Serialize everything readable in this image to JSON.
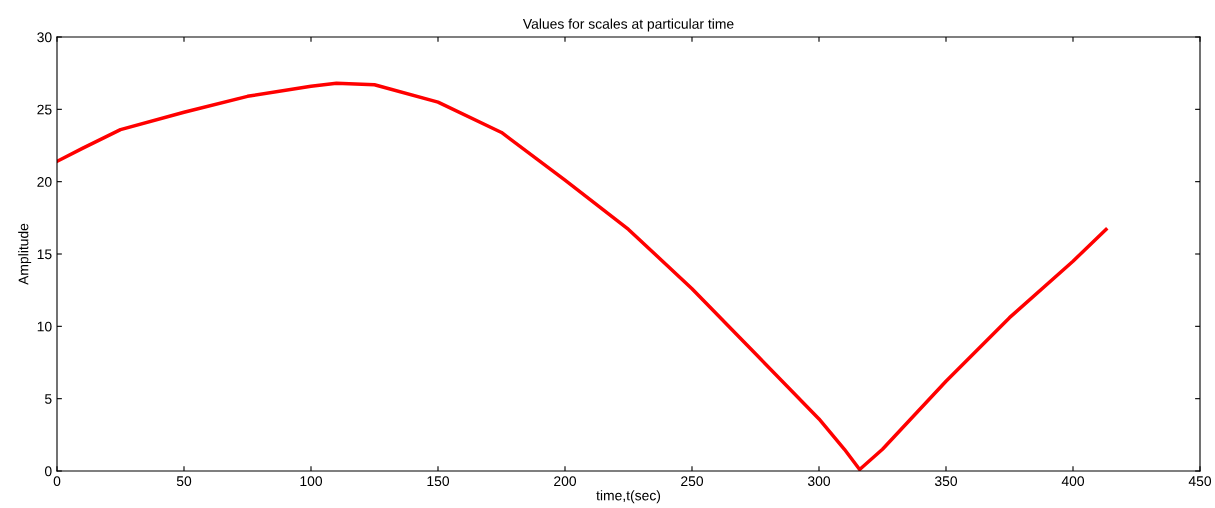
{
  "chart_data": {
    "type": "line",
    "title": "Values for scales at particular time",
    "xlabel": "time,t(sec)",
    "ylabel": "Amplitude",
    "series": [
      {
        "color": "#ff0000",
        "x": [
          0,
          10,
          25,
          50,
          75,
          100,
          110,
          125,
          150,
          175,
          200,
          225,
          250,
          275,
          300,
          310,
          316,
          325,
          350,
          375,
          400,
          413
        ],
        "values": [
          21.4,
          22.3,
          23.6,
          24.8,
          25.9,
          26.6,
          26.8,
          26.7,
          25.5,
          23.4,
          20.1,
          16.7,
          12.6,
          8.1,
          3.6,
          1.5,
          0.1,
          1.5,
          6.2,
          10.6,
          14.5,
          16.7
        ]
      }
    ],
    "xlim": [
      0,
      450
    ],
    "xticks": [
      0,
      50,
      100,
      150,
      200,
      250,
      300,
      350,
      400,
      450
    ],
    "ylim": [
      0,
      30
    ],
    "yticks": [
      0,
      5,
      10,
      15,
      20,
      25,
      30
    ],
    "grid": false,
    "legend": false,
    "marker": "none",
    "line_style": "solid"
  }
}
